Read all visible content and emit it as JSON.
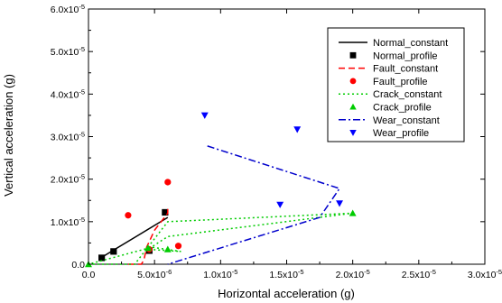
{
  "chart_data": {
    "type": "scatter",
    "xlabel": "Horizontal acceleration (g)",
    "ylabel": "Vertical acceleration (g)",
    "xlim": [
      0,
      3e-05
    ],
    "ylim": [
      0,
      6e-05
    ],
    "grid": false,
    "legend_position": "top-right",
    "x_ticks": [
      {
        "value": 0,
        "label": "0.0"
      },
      {
        "value": 5e-06,
        "label": "5.0x10",
        "exp": "-6"
      },
      {
        "value": 1e-05,
        "label": "1.0x10",
        "exp": "-5"
      },
      {
        "value": 1.5e-05,
        "label": "1.5x10",
        "exp": "-5"
      },
      {
        "value": 2e-05,
        "label": "2.0x10",
        "exp": "-5"
      },
      {
        "value": 2.5e-05,
        "label": "2.5x10",
        "exp": "-5"
      },
      {
        "value": 3e-05,
        "label": "3.0x10",
        "exp": "-5"
      }
    ],
    "y_ticks": [
      {
        "value": 0,
        "label": "0.0"
      },
      {
        "value": 1e-05,
        "label": "1.0x10",
        "exp": "-5"
      },
      {
        "value": 2e-05,
        "label": "2.0x10",
        "exp": "-5"
      },
      {
        "value": 3e-05,
        "label": "3.0x10",
        "exp": "-5"
      },
      {
        "value": 4e-05,
        "label": "4.0x10",
        "exp": "-5"
      },
      {
        "value": 5e-05,
        "label": "5.0x10",
        "exp": "-5"
      },
      {
        "value": 6e-05,
        "label": "6.0x10",
        "exp": "-5"
      }
    ],
    "series": [
      {
        "name": "Normal_constant",
        "kind": "line",
        "color": "#000000",
        "dash": "solid",
        "x": [
          9e-07,
          1.2e-06,
          3.6e-06,
          6e-06
        ],
        "y": [
          1e-06,
          2e-06,
          6.5e-06,
          1.1e-05
        ]
      },
      {
        "name": "Normal_profile",
        "kind": "marker",
        "marker": "square",
        "color": "#000000",
        "x": [
          1e-06,
          1.9e-06,
          4.6e-06,
          5.8e-06
        ],
        "y": [
          1.5e-06,
          3e-06,
          3.2e-06,
          1.22e-05
        ]
      },
      {
        "name": "Fault_constant",
        "kind": "line",
        "color": "#ff0000",
        "dash": "dash",
        "x": [
          3e-06,
          4e-06,
          4.2e-06,
          4.4e-06,
          5e-06,
          6e-06,
          6e-06
        ],
        "y": [
          0,
          0,
          1e-06,
          4e-06,
          8e-06,
          1.2e-05,
          1.3e-05
        ]
      },
      {
        "name": "Fault_profile",
        "kind": "marker",
        "marker": "circle",
        "color": "#ff0000",
        "x": [
          3e-06,
          4.6e-06,
          6e-06,
          6.8e-06
        ],
        "y": [
          1.15e-05,
          3.5e-06,
          1.93e-05,
          4.3e-06
        ]
      },
      {
        "name": "Crack_constant",
        "kind": "line",
        "color": "#00cc00",
        "dash": "dot",
        "x": [
          0,
          3.5e-06,
          6e-06,
          2e-05,
          6e-06,
          4.5e-06,
          7e-06,
          4.8e-06,
          0
        ],
        "y": [
          0,
          0,
          1e-05,
          1.2e-05,
          6.5e-06,
          3.5e-06,
          3e-06,
          4e-06,
          0
        ]
      },
      {
        "name": "Crack_profile",
        "kind": "marker",
        "marker": "triangle-up",
        "color": "#00cc00",
        "x": [
          0,
          4.5e-06,
          6e-06,
          2e-05
        ],
        "y": [
          0,
          3.8e-06,
          3.5e-06,
          1.2e-05
        ]
      },
      {
        "name": "Wear_constant",
        "kind": "line",
        "color": "#0000cc",
        "dash": "dashdot",
        "x": [
          9e-06,
          1.9e-05,
          1.75e-05,
          6e-06
        ],
        "y": [
          2.78e-05,
          1.78e-05,
          1.1e-05,
          0
        ]
      },
      {
        "name": "Wear_profile",
        "kind": "marker",
        "marker": "triangle-down",
        "color": "#0000ff",
        "x": [
          8.8e-06,
          1.58e-05,
          1.45e-05,
          1.9e-05
        ],
        "y": [
          3.5e-05,
          3.17e-05,
          1.4e-05,
          1.43e-05
        ]
      }
    ]
  }
}
